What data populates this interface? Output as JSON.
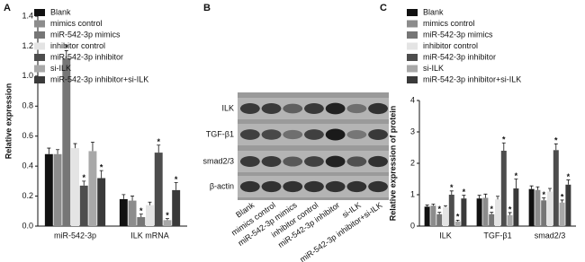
{
  "chart_data": [
    {
      "type": "bar",
      "panel_label": "A",
      "y_label": "Relative expression",
      "categories": [
        "miR-542-3p",
        "ILK  mRNA"
      ],
      "ylim": [
        0,
        1.4
      ],
      "yticks": [
        {
          "value": 0,
          "label": "0.0"
        },
        0.2,
        0.4,
        0.6,
        0.8,
        {
          "value": 1,
          "label": "1.0"
        },
        1.2,
        1.4
      ],
      "series": [
        {
          "name": "Blank",
          "color": "#111111",
          "values": [
            0.48,
            0.18
          ],
          "errors": [
            0.04,
            0.03
          ],
          "significance": [
            null,
            null
          ]
        },
        {
          "name": "mimics control",
          "color": "#8c8c8c",
          "values": [
            0.48,
            0.17
          ],
          "errors": [
            0.03,
            0.03
          ],
          "significance": [
            null,
            null
          ]
        },
        {
          "name": "miR-542-3p mimics",
          "color": "#767676",
          "values": [
            1.12,
            0.06
          ],
          "errors": [
            0.05,
            0.02
          ],
          "significance": [
            "*",
            "*"
          ]
        },
        {
          "name": "inhibitor control",
          "color": "#e4e4e4",
          "values": [
            0.52,
            0.14
          ],
          "errors": [
            0.03,
            0.02
          ],
          "significance": [
            null,
            null
          ]
        },
        {
          "name": "miR-542-3p inhibitor",
          "color": "#4d4d4d",
          "values": [
            0.27,
            0.49
          ],
          "errors": [
            0.03,
            0.05
          ],
          "significance": [
            "*",
            "*"
          ]
        },
        {
          "name": "si-ILK",
          "color": "#a8a8a8",
          "values": [
            0.5,
            0.04
          ],
          "errors": [
            0.06,
            0.01
          ],
          "significance": [
            null,
            "*"
          ]
        },
        {
          "name": "miR-542-3p inhibitor+si-ILK",
          "color": "#3a3a3a",
          "values": [
            0.32,
            0.24
          ],
          "errors": [
            0.05,
            0.05
          ],
          "significance": [
            "*",
            "*"
          ]
        }
      ]
    },
    {
      "type": "bar",
      "panel_label": "C",
      "y_label": "Relative expression of protein",
      "categories": [
        "ILK",
        "TGF-β1",
        "smad2/3"
      ],
      "ylim": [
        0,
        4
      ],
      "yticks": [
        0,
        1,
        2,
        3,
        4
      ],
      "series": [
        {
          "name": "Blank",
          "color": "#111111",
          "values": [
            0.62,
            0.88,
            1.18
          ],
          "errors": [
            0.05,
            0.1,
            0.1
          ],
          "significance": [
            null,
            null,
            null
          ]
        },
        {
          "name": "mimics control",
          "color": "#8c8c8c",
          "values": [
            0.65,
            0.9,
            1.15
          ],
          "errors": [
            0.05,
            0.12,
            0.1
          ],
          "significance": [
            null,
            null,
            null
          ]
        },
        {
          "name": "miR-542-3p mimics",
          "color": "#767676",
          "values": [
            0.38,
            0.38,
            0.82
          ],
          "errors": [
            0.06,
            0.06,
            0.08
          ],
          "significance": [
            "*",
            "*",
            "*"
          ]
        },
        {
          "name": "inhibitor control",
          "color": "#e4e4e4",
          "values": [
            0.6,
            0.85,
            1.1
          ],
          "errors": [
            0.05,
            0.1,
            0.1
          ],
          "significance": [
            null,
            null,
            null
          ]
        },
        {
          "name": "miR-542-3p inhibitor",
          "color": "#4d4d4d",
          "values": [
            1.0,
            2.4,
            2.42
          ],
          "errors": [
            0.12,
            0.25,
            0.2
          ],
          "significance": [
            "*",
            "*",
            "*"
          ]
        },
        {
          "name": "si-ILK",
          "color": "#a8a8a8",
          "values": [
            0.15,
            0.35,
            0.75
          ],
          "errors": [
            0.04,
            0.08,
            0.08
          ],
          "significance": [
            "*",
            "*",
            "*"
          ]
        },
        {
          "name": "miR-542-3p inhibitor+si-ILK",
          "color": "#3a3a3a",
          "values": [
            0.88,
            1.2,
            1.32
          ],
          "errors": [
            0.1,
            0.3,
            0.15
          ],
          "significance": [
            "*",
            "*",
            "*"
          ]
        }
      ]
    }
  ],
  "blot": {
    "panel_label": "B",
    "rows": [
      "ILK",
      "TGF-β1",
      "smad2/3",
      "β-actin"
    ],
    "lanes": [
      "Blank",
      "mimics control",
      "miR-542-3p mimics",
      "inhibitor control",
      "miR-542-3p inhibitor",
      "si-ILK",
      "miR-542-3p inhibitor+si-ILK"
    ]
  }
}
